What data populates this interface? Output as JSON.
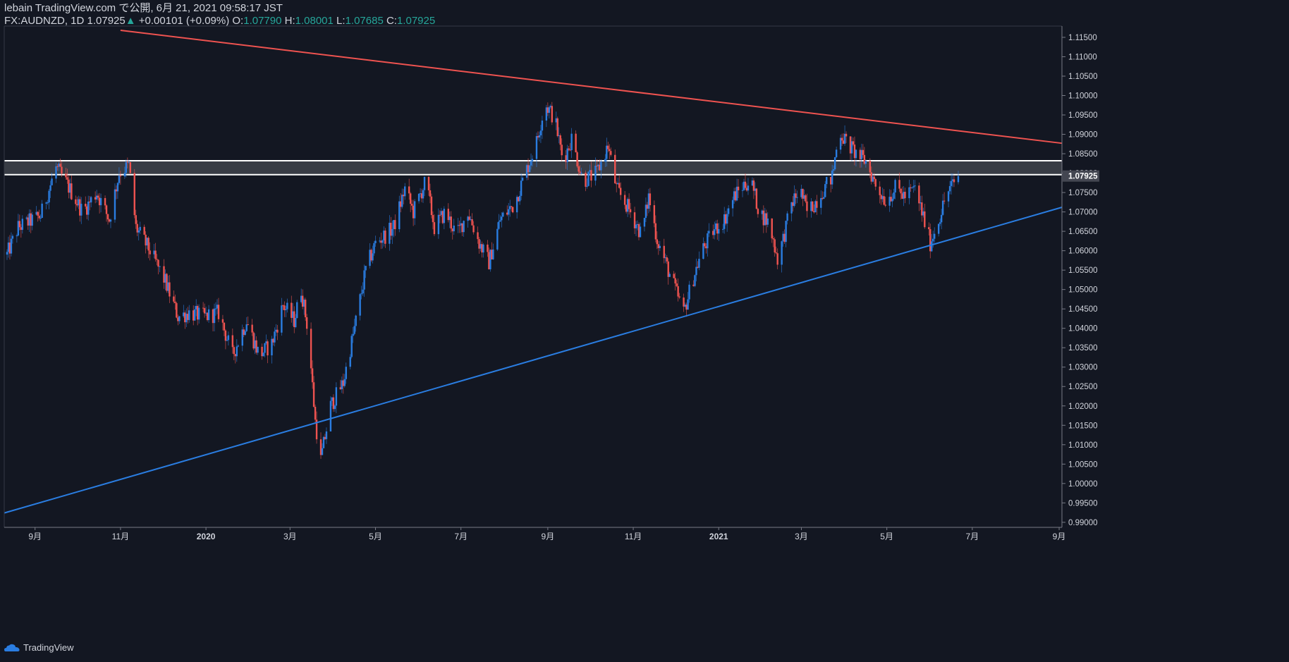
{
  "header": {
    "line1": "lebain TradingView.com で公開, 6月 21, 2021 09:58:17 JST",
    "symbol": "FX:AUDNZD, 1D",
    "last": "1.07925",
    "change_arrow": "▲",
    "change": "+0.00101 (+0.09%)",
    "o_label": "O:",
    "o_value": "1.07790",
    "h_label": "H:",
    "h_value": "1.08001",
    "l_label": "L:",
    "l_value": "1.07685",
    "c_label": "C:",
    "c_value": "1.07925"
  },
  "footer": {
    "brand": "TradingView",
    "logo_icon": "tradingview-cloud-icon"
  },
  "colors": {
    "background": "#131722",
    "up": "#2a7de1",
    "down": "#ef5350",
    "resistance": "#ef5350",
    "support": "#2a7de1",
    "zone": "#ffffff",
    "text": "#d1d4dc",
    "accent": "#26a69a"
  },
  "chart_data": {
    "type": "candlestick",
    "symbol": "FX:AUDNZD",
    "interval": "1D",
    "price_axis": {
      "ticks": [
        "1.11500",
        "1.11000",
        "1.10500",
        "1.10000",
        "1.09500",
        "1.09000",
        "1.08500",
        "1.08000",
        "1.07500",
        "1.07000",
        "1.06500",
        "1.06000",
        "1.05500",
        "1.05000",
        "1.04500",
        "1.04000",
        "1.03500",
        "1.03000",
        "1.02500",
        "1.02000",
        "1.01500",
        "1.01000",
        "1.00500",
        "1.00000",
        "0.99500",
        "0.99000"
      ],
      "range": [
        0.9887,
        1.1179
      ],
      "last_price_label": "1.07925",
      "last_price": 1.07925
    },
    "time_axis": {
      "labels": [
        "9月",
        "11月",
        "2020",
        "3月",
        "5月",
        "7月",
        "9月",
        "11月",
        "2021",
        "3月",
        "5月",
        "7月",
        "9月"
      ],
      "label_dates": [
        "2019-09-01",
        "2019-11-01",
        "2020-01-01",
        "2020-03-01",
        "2020-05-01",
        "2020-07-01",
        "2020-09-01",
        "2020-11-01",
        "2021-01-01",
        "2021-03-01",
        "2021-05-01",
        "2021-07-01",
        "2021-09-01"
      ],
      "start_date": "2019-08-10",
      "end_date": "2021-09-03"
    },
    "price_path": [
      [
        "2019-08-12",
        1.059
      ],
      [
        "2019-08-20",
        1.066
      ],
      [
        "2019-09-05",
        1.069
      ],
      [
        "2019-09-16",
        1.0815
      ],
      [
        "2019-09-24",
        1.077
      ],
      [
        "2019-10-05",
        1.07
      ],
      [
        "2019-10-15",
        1.075
      ],
      [
        "2019-10-24",
        1.068
      ],
      [
        "2019-10-31",
        1.08
      ],
      [
        "2019-11-07",
        1.082
      ],
      [
        "2019-11-12",
        1.066
      ],
      [
        "2019-11-22",
        1.06
      ],
      [
        "2019-12-03",
        1.052
      ],
      [
        "2019-12-12",
        1.043
      ],
      [
        "2019-12-20",
        1.044
      ],
      [
        "2019-12-31",
        1.043
      ],
      [
        "2020-01-10",
        1.044
      ],
      [
        "2020-01-20",
        1.033
      ],
      [
        "2020-01-30",
        1.042
      ],
      [
        "2020-02-08",
        1.033
      ],
      [
        "2020-02-17",
        1.036
      ],
      [
        "2020-02-25",
        1.046
      ],
      [
        "2020-03-04",
        1.042
      ],
      [
        "2020-03-09",
        1.05
      ],
      [
        "2020-03-14",
        1.039
      ],
      [
        "2020-03-19",
        1.016
      ],
      [
        "2020-03-23",
        1.006
      ],
      [
        "2020-03-30",
        1.02
      ],
      [
        "2020-04-08",
        1.026
      ],
      [
        "2020-04-16",
        1.04
      ],
      [
        "2020-04-24",
        1.055
      ],
      [
        "2020-05-01",
        1.062
      ],
      [
        "2020-05-08",
        1.064
      ],
      [
        "2020-05-14",
        1.066
      ],
      [
        "2020-05-22",
        1.076
      ],
      [
        "2020-05-28",
        1.07
      ],
      [
        "2020-06-06",
        1.078
      ],
      [
        "2020-06-12",
        1.066
      ],
      [
        "2020-06-20",
        1.07
      ],
      [
        "2020-06-28",
        1.064
      ],
      [
        "2020-07-06",
        1.07
      ],
      [
        "2020-07-14",
        1.062
      ],
      [
        "2020-07-21",
        1.057
      ],
      [
        "2020-07-29",
        1.068
      ],
      [
        "2020-08-08",
        1.072
      ],
      [
        "2020-08-16",
        1.08
      ],
      [
        "2020-08-24",
        1.088
      ],
      [
        "2020-08-30",
        1.098
      ],
      [
        "2020-09-06",
        1.094
      ],
      [
        "2020-09-12",
        1.083
      ],
      [
        "2020-09-18",
        1.089
      ],
      [
        "2020-09-26",
        1.078
      ],
      [
        "2020-10-06",
        1.08
      ],
      [
        "2020-10-14",
        1.087
      ],
      [
        "2020-10-20",
        1.076
      ],
      [
        "2020-10-30",
        1.07
      ],
      [
        "2020-11-07",
        1.064
      ],
      [
        "2020-11-12",
        1.074
      ],
      [
        "2020-11-18",
        1.063
      ],
      [
        "2020-11-25",
        1.056
      ],
      [
        "2020-12-03",
        1.048
      ],
      [
        "2020-12-07",
        1.044
      ],
      [
        "2020-12-13",
        1.052
      ],
      [
        "2020-12-20",
        1.06
      ],
      [
        "2020-12-28",
        1.065
      ],
      [
        "2021-01-05",
        1.068
      ],
      [
        "2021-01-12",
        1.074
      ],
      [
        "2021-01-19",
        1.077
      ],
      [
        "2021-01-24",
        1.078
      ],
      [
        "2021-01-30",
        1.07
      ],
      [
        "2021-02-06",
        1.067
      ],
      [
        "2021-02-12",
        1.058
      ],
      [
        "2021-02-16",
        1.063
      ],
      [
        "2021-02-22",
        1.072
      ],
      [
        "2021-02-28",
        1.076
      ],
      [
        "2021-03-05",
        1.07
      ],
      [
        "2021-03-10",
        1.072
      ],
      [
        "2021-03-17",
        1.076
      ],
      [
        "2021-03-23",
        1.079
      ],
      [
        "2021-03-28",
        1.091
      ],
      [
        "2021-04-02",
        1.088
      ],
      [
        "2021-04-09",
        1.085
      ],
      [
        "2021-04-16",
        1.083
      ],
      [
        "2021-04-23",
        1.077
      ],
      [
        "2021-04-30",
        1.073
      ],
      [
        "2021-05-07",
        1.076
      ],
      [
        "2021-05-14",
        1.074
      ],
      [
        "2021-05-21",
        1.076
      ],
      [
        "2021-05-26",
        1.07
      ],
      [
        "2021-06-01",
        1.062
      ],
      [
        "2021-06-07",
        1.068
      ],
      [
        "2021-06-13",
        1.075
      ],
      [
        "2021-06-21",
        1.079
      ]
    ],
    "trendlines": [
      {
        "role": "resistance",
        "from": [
          "2019-11-01",
          1.1168
        ],
        "to": [
          "2021-09-03",
          1.0877
        ]
      },
      {
        "role": "support",
        "from": [
          "2019-08-10",
          0.9924
        ],
        "to": [
          "2021-09-03",
          1.0712
        ]
      }
    ],
    "zone": {
      "top": 1.0832,
      "bottom": 1.0796
    },
    "grid": false
  }
}
